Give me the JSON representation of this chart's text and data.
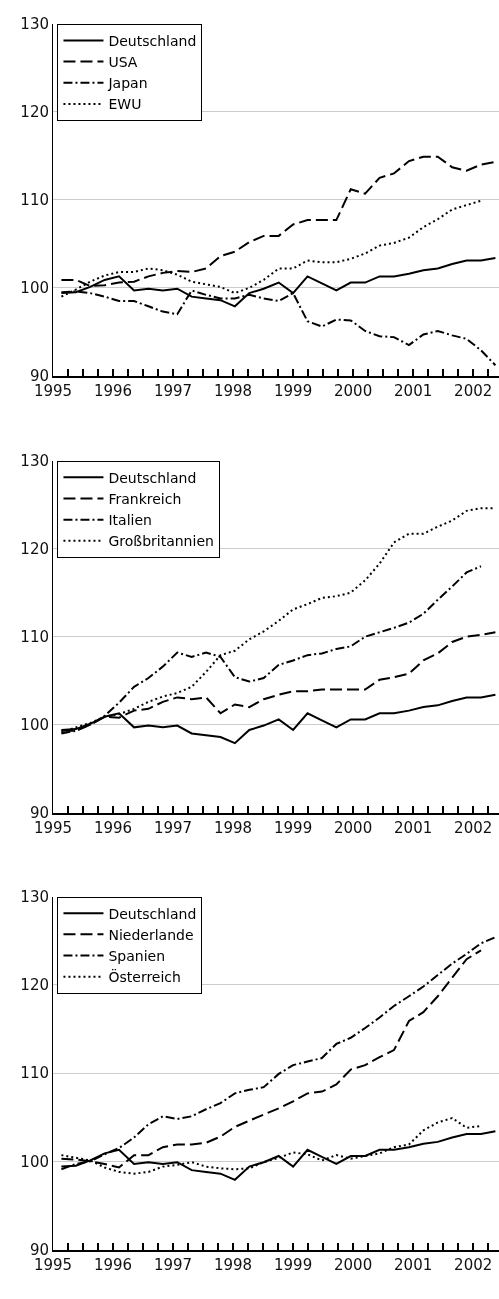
{
  "chart_data": [
    {
      "type": "line",
      "x": [
        1995.14,
        1995.38,
        1995.62,
        1995.86,
        1996.1,
        1996.35,
        1996.59,
        1996.83,
        1997.07,
        1997.31,
        1997.55,
        1997.79,
        1998.03,
        1998.27,
        1998.51,
        1998.76,
        1999.0,
        1999.24,
        1999.48,
        1999.72,
        1999.96,
        2000.2,
        2000.44,
        2000.68,
        2000.93,
        2001.17,
        2001.41,
        2001.65,
        2001.89,
        2002.13,
        2002.37
      ],
      "series": [
        {
          "name": "Deutschland",
          "color": "#000000",
          "line_style": "solid",
          "values": [
            99.4,
            99.5,
            100.1,
            100.9,
            101.3,
            99.7,
            99.9,
            99.7,
            99.9,
            99.0,
            98.8,
            98.6,
            97.9,
            99.4,
            99.9,
            100.6,
            99.4,
            101.3,
            100.5,
            99.7,
            100.6,
            100.6,
            101.3,
            101.3,
            101.6,
            102.0,
            102.2,
            102.7,
            103.1,
            103.1,
            103.4
          ]
        },
        {
          "name": "USA",
          "color": "#000000",
          "line_style": "dashed",
          "values": [
            100.9,
            100.9,
            100.2,
            100.3,
            100.6,
            100.7,
            101.3,
            101.7,
            101.9,
            101.8,
            102.2,
            103.6,
            104.1,
            105.2,
            105.9,
            105.9,
            107.2,
            107.7,
            107.7,
            107.7,
            111.2,
            110.7,
            112.5,
            113.0,
            114.4,
            114.9,
            114.9,
            113.7,
            113.3,
            114.0,
            114.3
          ]
        },
        {
          "name": "Japan",
          "color": "#000000",
          "line_style": "dashdot",
          "values": [
            99.5,
            99.6,
            99.4,
            99.0,
            98.5,
            98.5,
            97.9,
            97.3,
            97.0,
            99.7,
            99.2,
            98.8,
            98.8,
            99.2,
            98.8,
            98.5,
            99.4,
            96.2,
            95.6,
            96.4,
            96.3,
            95.1,
            94.5,
            94.4,
            93.5,
            94.7,
            95.1,
            94.6,
            94.2,
            92.9,
            91.2
          ]
        },
        {
          "name": "EWU",
          "color": "#000000",
          "line_style": "dotted",
          "values": [
            99.0,
            99.8,
            100.7,
            101.4,
            101.8,
            101.8,
            102.2,
            102.0,
            101.5,
            100.7,
            100.4,
            100.1,
            99.4,
            100.0,
            100.9,
            102.2,
            102.2,
            103.1,
            102.9,
            102.9,
            103.3,
            103.9,
            104.8,
            105.1,
            105.7,
            106.9,
            107.8,
            108.9,
            109.4,
            109.9,
            null
          ]
        }
      ],
      "xlim": [
        1995,
        2002.43
      ],
      "xticks": [
        1995,
        {
          "value": 1995.25,
          "label": null
        },
        {
          "value": 1995.5,
          "label": null
        },
        {
          "value": 1995.75,
          "label": null
        },
        1996,
        {
          "value": 1996.25,
          "label": null
        },
        {
          "value": 1996.5,
          "label": null
        },
        {
          "value": 1996.75,
          "label": null
        },
        1997,
        {
          "value": 1997.25,
          "label": null
        },
        {
          "value": 1997.5,
          "label": null
        },
        {
          "value": 1997.75,
          "label": null
        },
        1998,
        {
          "value": 1998.25,
          "label": null
        },
        {
          "value": 1998.5,
          "label": null
        },
        {
          "value": 1998.75,
          "label": null
        },
        1999,
        {
          "value": 1999.25,
          "label": null
        },
        {
          "value": 1999.5,
          "label": null
        },
        {
          "value": 1999.75,
          "label": null
        },
        2000,
        {
          "value": 2000.25,
          "label": null
        },
        {
          "value": 2000.5,
          "label": null
        },
        {
          "value": 2000.75,
          "label": null
        },
        2001,
        {
          "value": 2001.25,
          "label": null
        },
        {
          "value": 2001.5,
          "label": null
        },
        {
          "value": 2001.75,
          "label": null
        },
        2002,
        {
          "value": 2002.25,
          "label": null
        }
      ],
      "ylim": [
        90,
        130
      ],
      "yticks": [
        90,
        100,
        110,
        120,
        130
      ],
      "grid": "y",
      "legend": "top left",
      "marker": "none"
    },
    {
      "type": "line",
      "x": [
        1995.14,
        1995.38,
        1995.62,
        1995.86,
        1996.1,
        1996.35,
        1996.59,
        1996.83,
        1997.07,
        1997.31,
        1997.55,
        1997.79,
        1998.03,
        1998.27,
        1998.51,
        1998.76,
        1999.0,
        1999.24,
        1999.48,
        1999.72,
        1999.96,
        2000.2,
        2000.44,
        2000.68,
        2000.93,
        2001.17,
        2001.41,
        2001.65,
        2001.89,
        2002.13,
        2002.37
      ],
      "series": [
        {
          "name": "Deutschland",
          "color": "#000000",
          "line_style": "solid",
          "values": [
            99.4,
            99.5,
            100.1,
            100.9,
            101.3,
            99.7,
            99.9,
            99.7,
            99.9,
            99.0,
            98.8,
            98.6,
            97.9,
            99.4,
            99.9,
            100.6,
            99.4,
            101.3,
            100.5,
            99.7,
            100.6,
            100.6,
            101.3,
            101.3,
            101.6,
            102.0,
            102.2,
            102.7,
            103.1,
            103.1,
            103.4
          ]
        },
        {
          "name": "Frankreich",
          "color": "#000000",
          "line_style": "dashed",
          "values": [
            99.3,
            99.3,
            100.0,
            100.9,
            100.8,
            101.6,
            101.8,
            102.6,
            103.1,
            102.9,
            103.1,
            101.3,
            102.3,
            102.0,
            102.9,
            103.4,
            103.8,
            103.8,
            104.0,
            104.0,
            104.0,
            104.0,
            105.1,
            105.4,
            105.8,
            107.3,
            108.1,
            109.4,
            110.0,
            110.2,
            110.5
          ]
        },
        {
          "name": "Italien",
          "color": "#000000",
          "line_style": "dashdot",
          "values": [
            99.0,
            99.3,
            100.0,
            101.0,
            102.5,
            104.3,
            105.3,
            106.6,
            108.2,
            107.7,
            108.2,
            107.7,
            105.4,
            104.9,
            105.3,
            106.8,
            107.3,
            107.9,
            108.1,
            108.6,
            108.9,
            110.0,
            110.5,
            111.0,
            111.6,
            112.6,
            114.2,
            115.7,
            117.3,
            118.0,
            null
          ]
        },
        {
          "name": "Großbritannien",
          "color": "#000000",
          "line_style": "dotted",
          "values": [
            99.1,
            99.7,
            100.2,
            100.9,
            101.2,
            101.8,
            102.6,
            103.2,
            103.6,
            104.3,
            106.0,
            107.9,
            108.4,
            109.7,
            110.6,
            111.8,
            113.1,
            113.7,
            114.4,
            114.6,
            115.0,
            116.4,
            118.3,
            120.7,
            121.7,
            121.7,
            122.5,
            123.2,
            124.3,
            124.6,
            124.6
          ]
        }
      ],
      "xlim": [
        1995,
        2002.43
      ],
      "xticks": [
        1995,
        {
          "value": 1995.25,
          "label": null
        },
        {
          "value": 1995.5,
          "label": null
        },
        {
          "value": 1995.75,
          "label": null
        },
        1996,
        {
          "value": 1996.25,
          "label": null
        },
        {
          "value": 1996.5,
          "label": null
        },
        {
          "value": 1996.75,
          "label": null
        },
        1997,
        {
          "value": 1997.25,
          "label": null
        },
        {
          "value": 1997.5,
          "label": null
        },
        {
          "value": 1997.75,
          "label": null
        },
        1998,
        {
          "value": 1998.25,
          "label": null
        },
        {
          "value": 1998.5,
          "label": null
        },
        {
          "value": 1998.75,
          "label": null
        },
        1999,
        {
          "value": 1999.25,
          "label": null
        },
        {
          "value": 1999.5,
          "label": null
        },
        {
          "value": 1999.75,
          "label": null
        },
        2000,
        {
          "value": 2000.25,
          "label": null
        },
        {
          "value": 2000.5,
          "label": null
        },
        {
          "value": 2000.75,
          "label": null
        },
        2001,
        {
          "value": 2001.25,
          "label": null
        },
        {
          "value": 2001.5,
          "label": null
        },
        {
          "value": 2001.75,
          "label": null
        },
        2002,
        {
          "value": 2002.25,
          "label": null
        }
      ],
      "ylim": [
        90,
        130
      ],
      "yticks": [
        90,
        100,
        110,
        120,
        130
      ],
      "grid": "y",
      "legend": "top left",
      "marker": "none"
    },
    {
      "type": "line",
      "x": [
        1995.14,
        1995.38,
        1995.62,
        1995.86,
        1996.1,
        1996.35,
        1996.59,
        1996.83,
        1997.07,
        1997.31,
        1997.55,
        1997.79,
        1998.03,
        1998.27,
        1998.51,
        1998.76,
        1999.0,
        1999.24,
        1999.48,
        1999.72,
        1999.96,
        2000.2,
        2000.44,
        2000.68,
        2000.93,
        2001.17,
        2001.41,
        2001.65,
        2001.89,
        2002.13,
        2002.37
      ],
      "series": [
        {
          "name": "Deutschland",
          "color": "#000000",
          "line_style": "solid",
          "values": [
            99.4,
            99.5,
            100.1,
            100.9,
            101.3,
            99.7,
            99.9,
            99.7,
            99.9,
            99.0,
            98.8,
            98.6,
            97.9,
            99.4,
            99.9,
            100.6,
            99.4,
            101.3,
            100.5,
            99.7,
            100.6,
            100.6,
            101.3,
            101.3,
            101.6,
            102.0,
            102.2,
            102.7,
            103.1,
            103.1,
            103.4
          ]
        },
        {
          "name": "Niederlande",
          "color": "#000000",
          "line_style": "dashed",
          "values": [
            100.3,
            100.2,
            100.0,
            99.7,
            99.3,
            100.7,
            100.7,
            101.6,
            101.9,
            101.9,
            102.1,
            102.8,
            103.9,
            104.6,
            105.3,
            106.0,
            106.8,
            107.7,
            107.9,
            108.7,
            110.4,
            110.9,
            111.8,
            112.6,
            115.9,
            116.9,
            118.7,
            120.8,
            122.9,
            123.9,
            null
          ]
        },
        {
          "name": "Spanien",
          "color": "#000000",
          "line_style": "dashdot",
          "values": [
            99.1,
            99.7,
            100.0,
            100.8,
            101.5,
            102.7,
            104.2,
            105.1,
            104.8,
            105.1,
            105.9,
            106.6,
            107.7,
            108.1,
            108.4,
            109.9,
            110.9,
            111.3,
            111.7,
            113.3,
            114.0,
            115.1,
            116.3,
            117.6,
            118.7,
            119.8,
            121.1,
            122.4,
            123.5,
            124.7,
            125.4
          ]
        },
        {
          "name": "Österreich",
          "color": "#000000",
          "line_style": "dotted",
          "values": [
            100.7,
            100.4,
            100.1,
            99.3,
            98.8,
            98.6,
            98.8,
            99.4,
            99.6,
            99.9,
            99.4,
            99.2,
            99.1,
            99.2,
            99.9,
            100.4,
            101.0,
            100.8,
            100.1,
            100.7,
            100.3,
            100.6,
            100.9,
            101.6,
            101.9,
            103.5,
            104.4,
            104.9,
            103.8,
            104.0,
            null
          ]
        }
      ],
      "xlim": [
        1995,
        2002.43
      ],
      "xticks": [
        1995,
        {
          "value": 1995.25,
          "label": null
        },
        {
          "value": 1995.5,
          "label": null
        },
        {
          "value": 1995.75,
          "label": null
        },
        1996,
        {
          "value": 1996.25,
          "label": null
        },
        {
          "value": 1996.5,
          "label": null
        },
        {
          "value": 1996.75,
          "label": null
        },
        1997,
        {
          "value": 1997.25,
          "label": null
        },
        {
          "value": 1997.5,
          "label": null
        },
        {
          "value": 1997.75,
          "label": null
        },
        1998,
        {
          "value": 1998.25,
          "label": null
        },
        {
          "value": 1998.5,
          "label": null
        },
        {
          "value": 1998.75,
          "label": null
        },
        1999,
        {
          "value": 1999.25,
          "label": null
        },
        {
          "value": 1999.5,
          "label": null
        },
        {
          "value": 1999.75,
          "label": null
        },
        2000,
        {
          "value": 2000.25,
          "label": null
        },
        {
          "value": 2000.5,
          "label": null
        },
        {
          "value": 2000.75,
          "label": null
        },
        2001,
        {
          "value": 2001.25,
          "label": null
        },
        {
          "value": 2001.5,
          "label": null
        },
        {
          "value": 2001.75,
          "label": null
        },
        2002,
        {
          "value": 2002.25,
          "label": null
        }
      ],
      "ylim": [
        90,
        130
      ],
      "yticks": [
        90,
        100,
        110,
        120,
        130
      ],
      "grid": "y",
      "legend": "top left",
      "marker": "none"
    }
  ]
}
